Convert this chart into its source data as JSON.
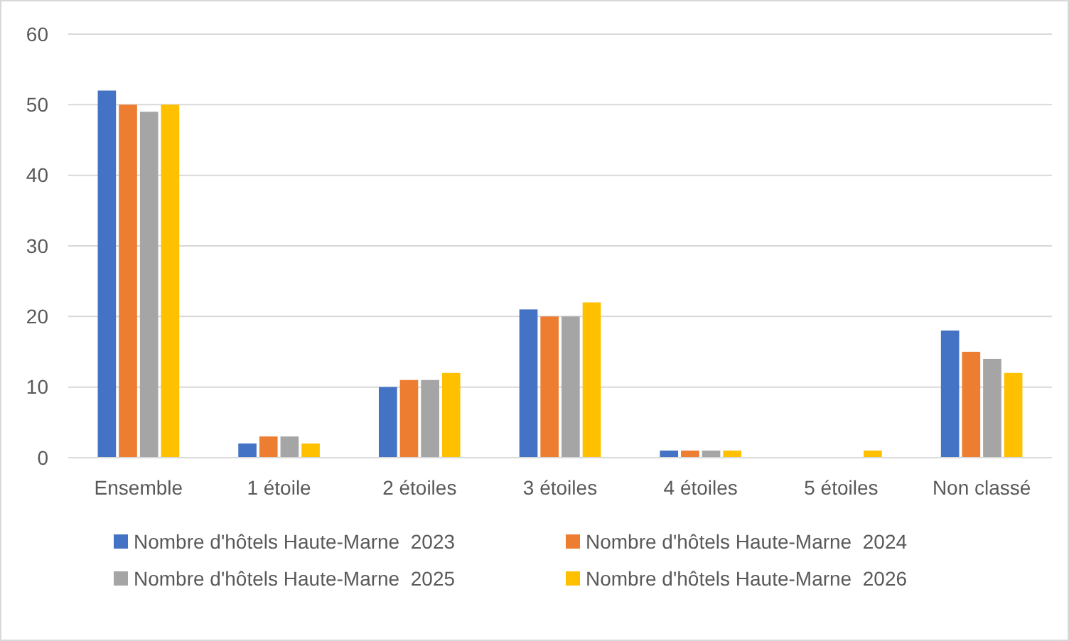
{
  "chart_data": {
    "type": "bar",
    "categories": [
      "Ensemble",
      "1 étoile",
      "2 étoiles",
      "3 étoiles",
      "4 étoiles",
      "5 étoiles",
      "Non classé"
    ],
    "series": [
      {
        "name": "Nombre d'hôtels Haute-Marne  2023",
        "color": "#4472c4",
        "values": [
          52,
          2,
          10,
          21,
          1,
          null,
          18
        ]
      },
      {
        "name": "Nombre d'hôtels Haute-Marne  2024",
        "color": "#ed7d31",
        "values": [
          50,
          3,
          11,
          20,
          1,
          null,
          15
        ]
      },
      {
        "name": "Nombre d'hôtels Haute-Marne  2025",
        "color": "#a5a5a5",
        "values": [
          49,
          3,
          11,
          20,
          1,
          null,
          14
        ]
      },
      {
        "name": "Nombre d'hôtels Haute-Marne  2026",
        "color": "#ffc000",
        "values": [
          50,
          2,
          12,
          22,
          1,
          1,
          12
        ]
      }
    ],
    "ylim": [
      0,
      60
    ],
    "yticks": [
      0,
      10,
      20,
      30,
      40,
      50,
      60
    ],
    "grid": "y",
    "legend": "bottom"
  }
}
